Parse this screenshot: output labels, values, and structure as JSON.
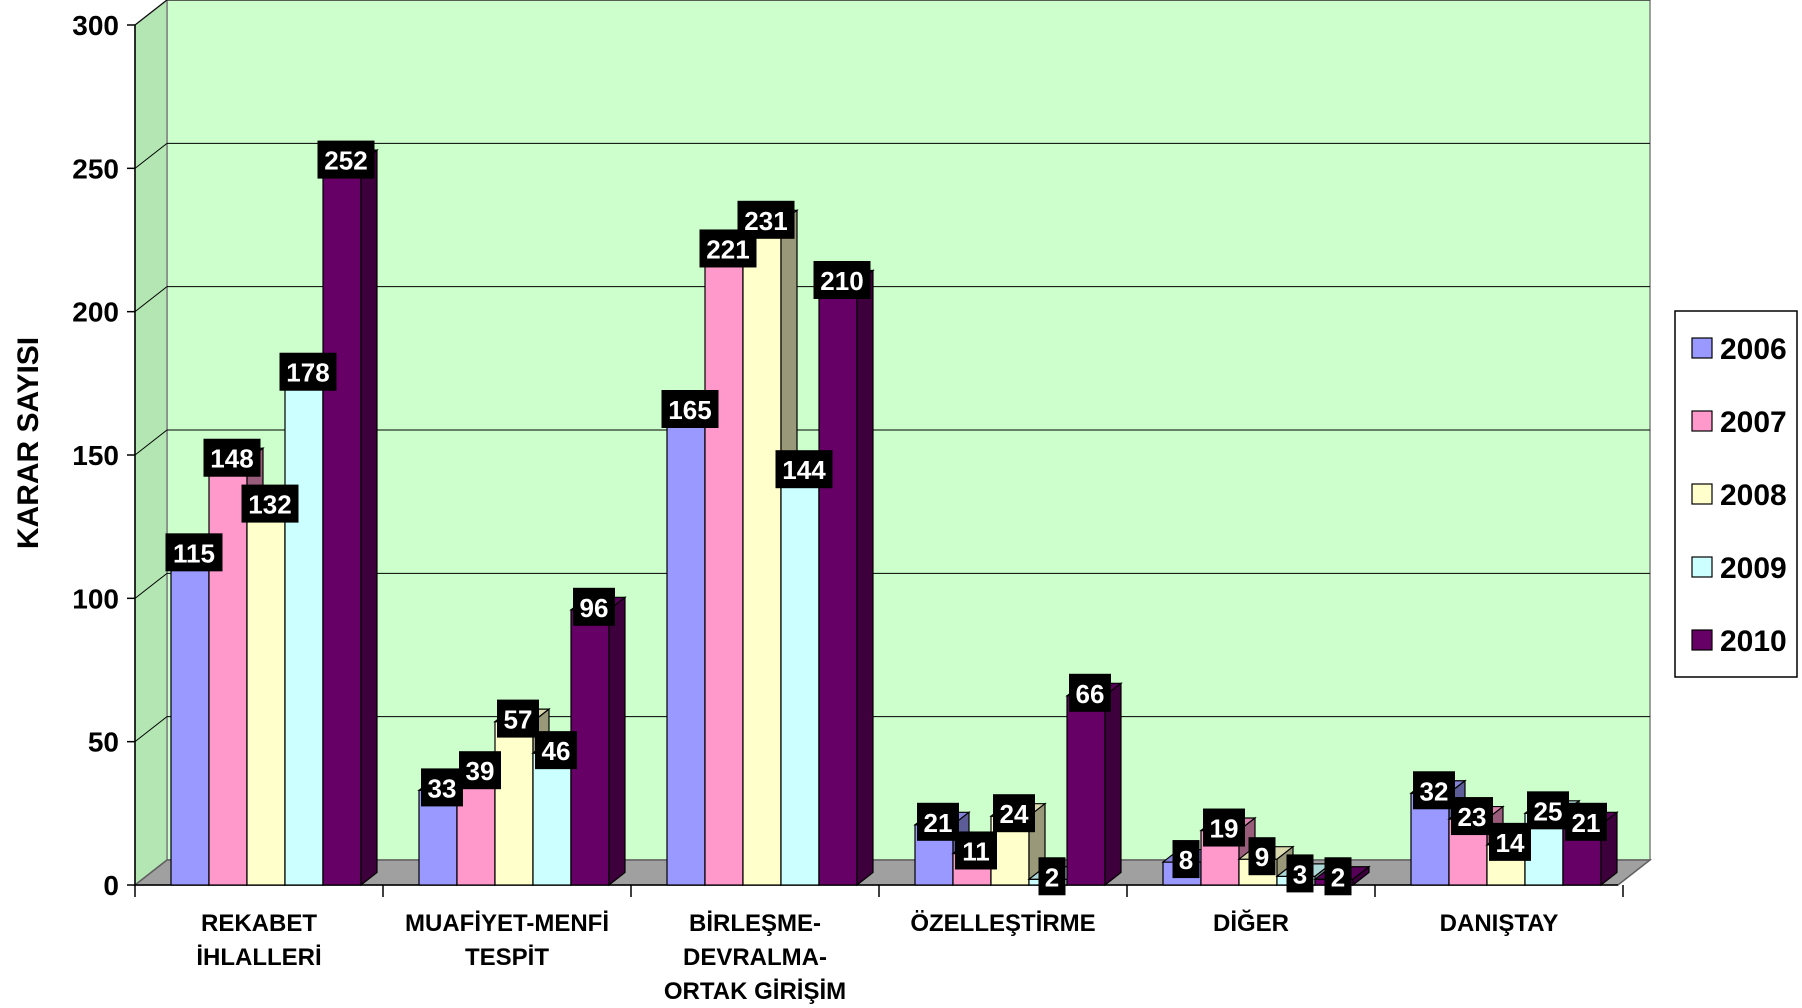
{
  "chart_data": {
    "type": "bar",
    "ylabel": "KARAR SAYISI",
    "ylim": [
      0,
      300
    ],
    "yticks": [
      0,
      50,
      100,
      150,
      200,
      250,
      300
    ],
    "grid": true,
    "legend_position": "right",
    "categories": [
      [
        "REKABET",
        "İHLALLERİ"
      ],
      [
        "MUAFİYET-MENFİ",
        "TESPİT"
      ],
      [
        "BİRLEŞME-",
        "DEVRALMA-",
        "ORTAK GİRİŞİM"
      ],
      [
        "ÖZELLEŞTİRME"
      ],
      [
        "DİĞER"
      ],
      [
        "DANIŞTAY"
      ]
    ],
    "series": [
      {
        "name": "2006",
        "color": "#9999ff",
        "values": [
          115,
          33,
          165,
          21,
          8,
          32
        ]
      },
      {
        "name": "2007",
        "color": "#ff99cc",
        "values": [
          148,
          39,
          221,
          11,
          19,
          23
        ]
      },
      {
        "name": "2008",
        "color": "#ffffcc",
        "values": [
          132,
          57,
          231,
          24,
          9,
          14
        ]
      },
      {
        "name": "2009",
        "color": "#ccffff",
        "values": [
          178,
          46,
          144,
          2,
          3,
          25
        ]
      },
      {
        "name": "2010",
        "color": "#660066",
        "values": [
          252,
          96,
          210,
          66,
          2,
          21
        ]
      }
    ],
    "plot_background": "#ccffcc"
  }
}
